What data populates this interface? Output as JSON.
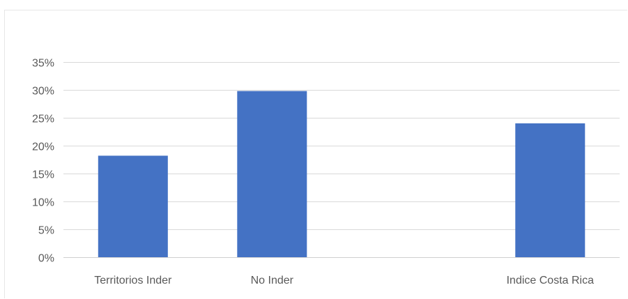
{
  "chart_data": {
    "type": "bar",
    "categories": [
      "Territorios Inder",
      "No Inder",
      "",
      "Indice Costa Rica"
    ],
    "values": [
      0.182,
      0.298,
      null,
      0.24
    ],
    "title": "",
    "xlabel": "",
    "ylabel": "",
    "ylim": [
      0,
      0.35
    ],
    "yticks": [
      0,
      0.05,
      0.1,
      0.15,
      0.2,
      0.25,
      0.3,
      0.35
    ],
    "ytick_labels": [
      "0%",
      "5%",
      "10%",
      "15%",
      "20%",
      "25%",
      "30%",
      "35%"
    ],
    "grid": true,
    "legend": "none",
    "bar_color": "#4472C4",
    "grid_color": "#d9d9d9"
  }
}
